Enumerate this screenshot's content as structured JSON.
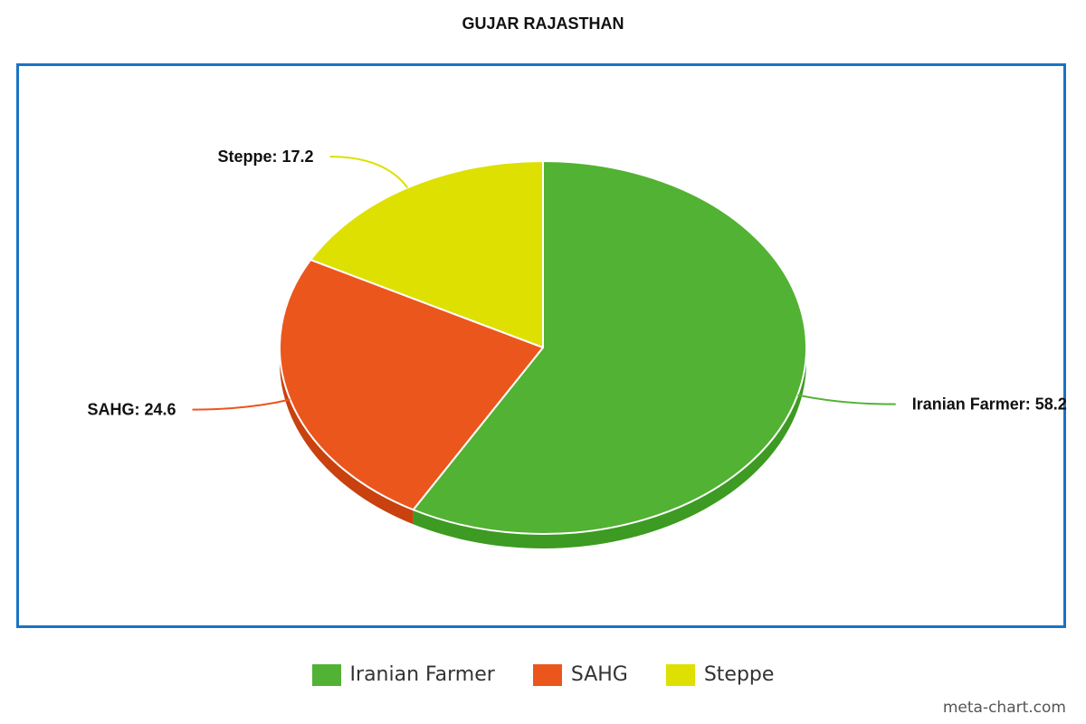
{
  "chart_data": {
    "type": "pie",
    "title": "GUJAR RAJASTHAN",
    "series": [
      {
        "name": "Iranian Farmer",
        "value": 58.2,
        "color": "#52b233",
        "side_color": "#3d9a22",
        "label": "Iranian Farmer: 58.2"
      },
      {
        "name": "SAHG",
        "value": 24.6,
        "color": "#eb561d",
        "side_color": "#c8410e",
        "label": "SAHG: 24.6"
      },
      {
        "name": "Steppe",
        "value": 17.2,
        "color": "#dde000",
        "side_color": "#b9bb00",
        "label": "Steppe: 17.2"
      }
    ],
    "legend_position": "bottom-center",
    "border_color": "#1a73c2"
  },
  "legend": {
    "items": [
      "Iranian Farmer",
      "SAHG",
      "Steppe"
    ]
  },
  "watermark": "meta-chart.com"
}
